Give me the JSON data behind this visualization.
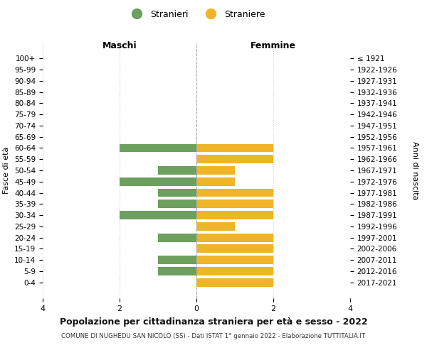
{
  "age_groups": [
    "100+",
    "95-99",
    "90-94",
    "85-89",
    "80-84",
    "75-79",
    "70-74",
    "65-69",
    "60-64",
    "55-59",
    "50-54",
    "45-49",
    "40-44",
    "35-39",
    "30-34",
    "25-29",
    "20-24",
    "15-19",
    "10-14",
    "5-9",
    "0-4"
  ],
  "birth_years": [
    "≤ 1921",
    "1922-1926",
    "1927-1931",
    "1932-1936",
    "1937-1941",
    "1942-1946",
    "1947-1951",
    "1952-1956",
    "1957-1961",
    "1962-1966",
    "1967-1971",
    "1972-1976",
    "1977-1981",
    "1982-1986",
    "1987-1991",
    "1992-1996",
    "1997-2001",
    "2002-2006",
    "2007-2011",
    "2012-2016",
    "2017-2021"
  ],
  "maschi": [
    0,
    0,
    0,
    0,
    0,
    0,
    0,
    0,
    2,
    0,
    1,
    2,
    1,
    1,
    2,
    0,
    1,
    0,
    1,
    1,
    0
  ],
  "femmine": [
    0,
    0,
    0,
    0,
    0,
    0,
    0,
    0,
    2,
    2,
    1,
    1,
    2,
    2,
    2,
    1,
    2,
    2,
    2,
    2,
    2
  ],
  "male_color": "#6d9f5e",
  "female_color": "#f0b429",
  "title": "Popolazione per cittadinanza straniera per età e sesso - 2022",
  "subtitle": "COMUNE DI NUGHEDU SAN NICOLÒ (SS) - Dati ISTAT 1° gennaio 2022 - Elaborazione TUTTITALIA.IT",
  "left_label": "Maschi",
  "right_label": "Femmine",
  "yleft_label": "Fasce di età",
  "yright_label": "Anni di nascita",
  "legend_male": "Stranieri",
  "legend_female": "Straniere",
  "xlim": 4,
  "bg_color": "#ffffff",
  "grid_color": "#cccccc",
  "bar_height": 0.75
}
